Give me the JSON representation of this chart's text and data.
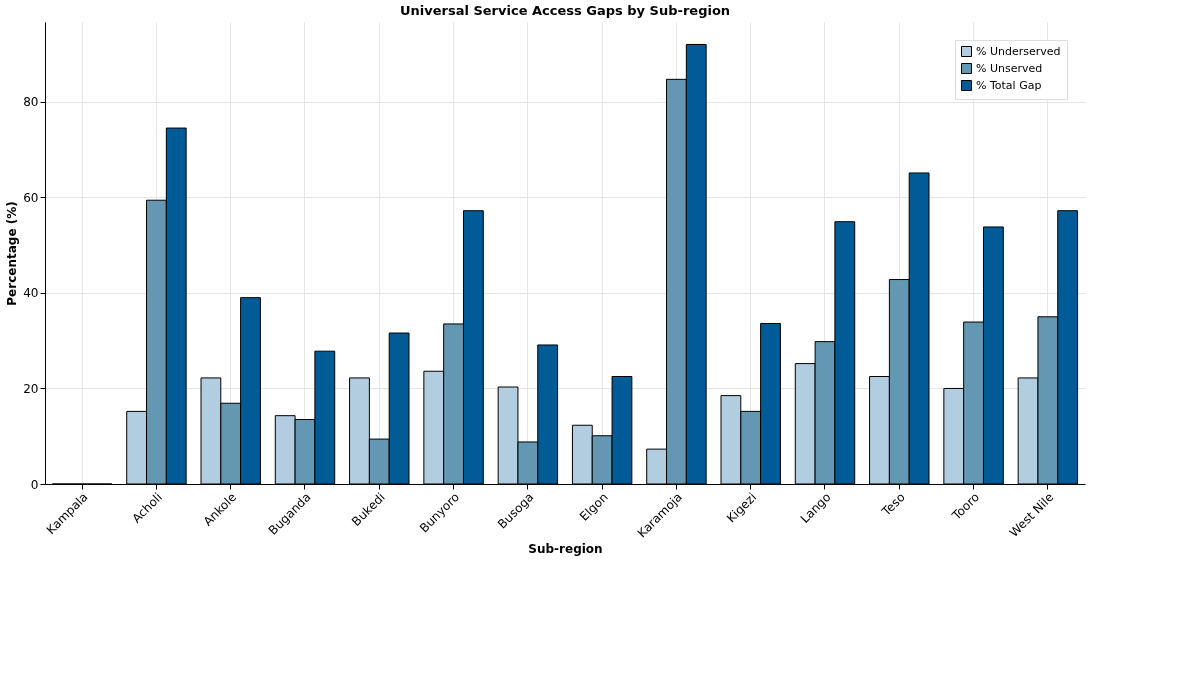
{
  "chart_data": {
    "type": "bar",
    "title": "Universal Service Access Gaps by Sub-region",
    "xlabel": "Sub-region",
    "ylabel": "Percentage (%)",
    "categories": [
      "Kampala",
      "Acholi",
      "Ankole",
      "Buganda",
      "Bukedi",
      "Bunyoro",
      "Busoga",
      "Elgon",
      "Karamoja",
      "Kigezi",
      "Lango",
      "Teso",
      "Tooro",
      "West Nile"
    ],
    "series": [
      {
        "name": "% Underserved",
        "color": "#b3cde0",
        "values": [
          0,
          15.2,
          22.2,
          14.3,
          22.2,
          23.6,
          20.3,
          12.3,
          7.3,
          18.5,
          25.2,
          22.5,
          20.0,
          22.2
        ]
      },
      {
        "name": "% Unserved",
        "color": "#6497b1",
        "values": [
          0,
          59.4,
          16.9,
          13.5,
          9.4,
          33.5,
          8.8,
          10.1,
          84.7,
          15.2,
          29.8,
          42.8,
          33.9,
          35.0
        ]
      },
      {
        "name": "% Total Gap",
        "color": "#005b96",
        "values": [
          0,
          74.5,
          39.0,
          27.8,
          31.6,
          57.2,
          29.1,
          22.5,
          92.0,
          33.6,
          54.9,
          65.1,
          53.8,
          57.2
        ]
      }
    ],
    "ylim": [
      0,
      96.7
    ],
    "yticks": [
      0,
      20,
      40,
      60,
      80
    ],
    "grid": true,
    "legend": "top right"
  }
}
